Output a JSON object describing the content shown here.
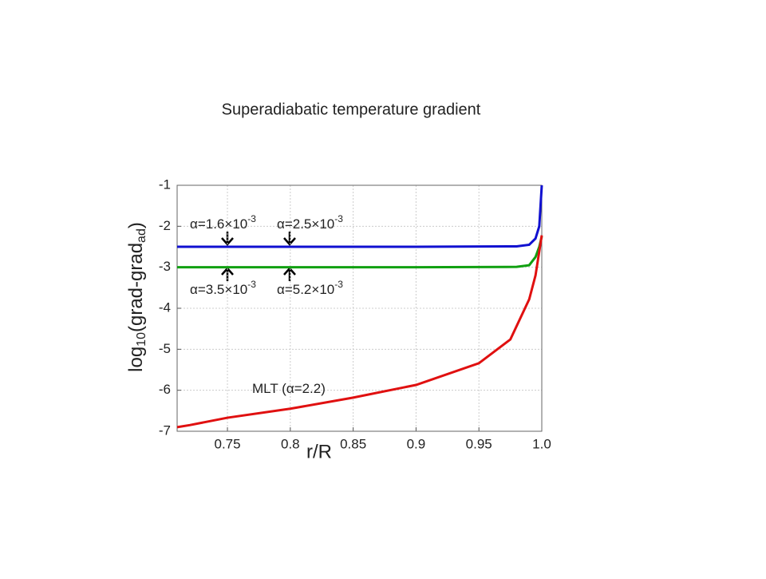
{
  "chart_data": {
    "type": "line",
    "title": "Superadiabatic temperature gradient",
    "x_label": "r/R",
    "y_label": [
      {
        "text": "log",
        "sub": "10"
      },
      {
        "text": "(grad-grad",
        "sub": "ad"
      },
      {
        "text": ")"
      }
    ],
    "xlim": [
      0.71,
      1.0
    ],
    "ylim": [
      -7,
      -1
    ],
    "xticks": [
      0.75,
      0.8,
      0.85,
      0.9,
      0.95,
      {
        "value": 1.0,
        "label": "1.0"
      }
    ],
    "yticks": [
      -7,
      -6,
      -5,
      -4,
      -3,
      -2,
      -1
    ],
    "grid": true,
    "series": [
      {
        "color": "#1010d0",
        "x": [
          0.71,
          0.8,
          0.9,
          0.98,
          0.99,
          0.995,
          0.998,
          1.0
        ],
        "values": [
          -2.5,
          -2.5,
          -2.5,
          -2.49,
          -2.45,
          -2.3,
          -2.0,
          -1.0
        ]
      },
      {
        "color": "#10a010",
        "x": [
          0.71,
          0.8,
          0.9,
          0.98,
          0.99,
          0.995,
          0.998,
          1.0
        ],
        "values": [
          -3.0,
          -3.0,
          -3.0,
          -2.99,
          -2.95,
          -2.75,
          -2.5,
          -2.25
        ]
      },
      {
        "color": "#e01010",
        "x": [
          0.71,
          0.72,
          0.75,
          0.8,
          0.85,
          0.9,
          0.95,
          0.975,
          0.99,
          0.995,
          1.0
        ],
        "values": [
          -6.9,
          -6.85,
          -6.67,
          -6.45,
          -6.18,
          -5.87,
          -5.34,
          -4.76,
          -3.78,
          -3.2,
          -2.22
        ]
      }
    ],
    "annotations": [
      {
        "text": "α=1.6×10",
        "sup": "-3"
      },
      {
        "text": "α=2.5×10",
        "sup": "-3"
      },
      {
        "text": "α=3.5×10",
        "sup": "-3"
      },
      {
        "text": "α=5.2×10",
        "sup": "-3"
      },
      {
        "text": "MLT (α=2.2)"
      }
    ]
  }
}
